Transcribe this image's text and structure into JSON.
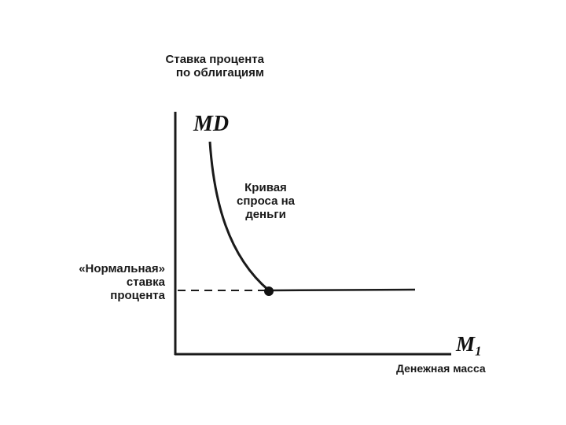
{
  "y_axis_title": [
    "Ставка процента",
    "по облигациям"
  ],
  "curve_label": "MD",
  "curve_annotation": [
    "Кривая",
    "спроса на",
    "деньги"
  ],
  "rate_annotation": [
    "«Нормальная»",
    "ставка",
    "процента"
  ],
  "x_axis_symbol": "M₁",
  "x_axis_title": "Денежная масса",
  "colors": {
    "ink": "#1a1a1a",
    "background": "#ffffff"
  },
  "chart_data": {
    "type": "line",
    "title": "",
    "xlabel": "Денежная масса",
    "ylabel": "Ставка процента по облигациям",
    "series": [
      {
        "name": "MD"
      }
    ],
    "annotations": [
      "«Нормальная» ставка процента",
      "Кривая спроса на деньги"
    ],
    "grid": false,
    "legend": "none"
  }
}
